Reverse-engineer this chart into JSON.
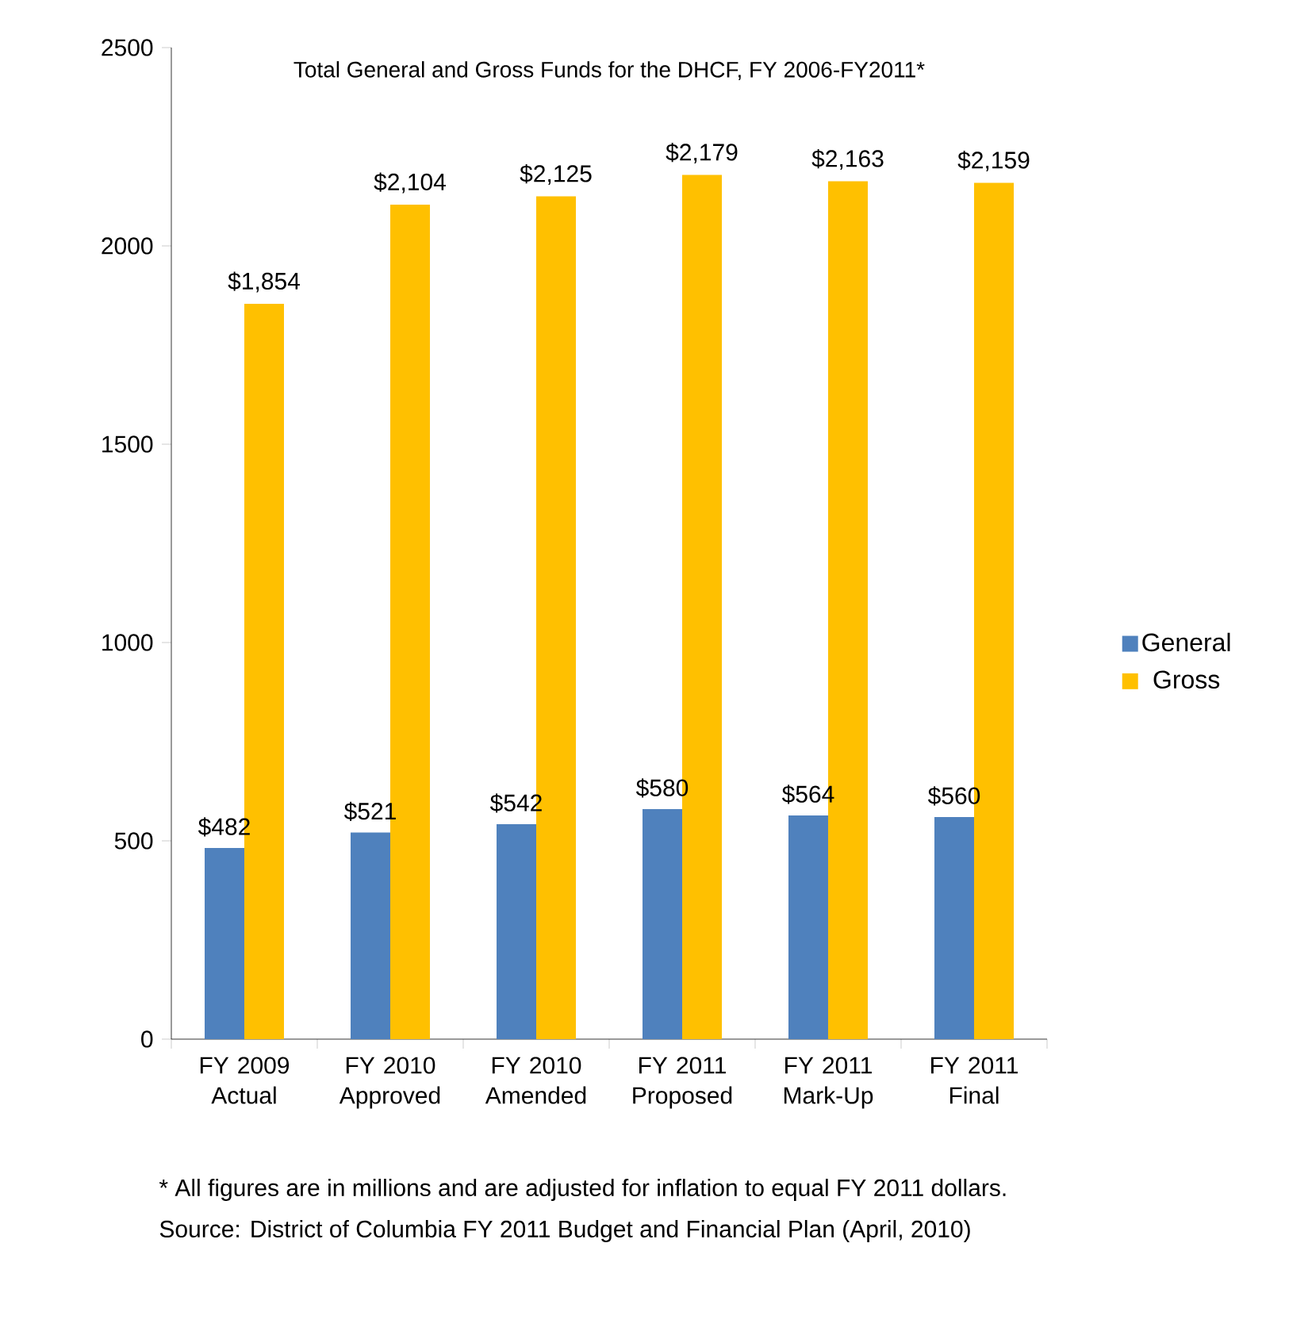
{
  "chart_data": {
    "type": "bar",
    "title": "Total General and Gross Funds for the DHCF, FY 2006-FY2011*",
    "categories": [
      "FY 2009 Actual",
      "FY 2010 Approved",
      "FY 2010 Amended",
      "FY 2011 Proposed",
      "FY 2011 Mark-Up",
      "FY 2011 Final"
    ],
    "series": [
      {
        "name": "General",
        "color": "#4f81bd",
        "values": [
          482,
          521,
          542,
          580,
          564,
          560
        ],
        "value_labels": [
          "$482",
          "$521",
          "$542",
          "$580",
          "$564",
          "$560"
        ]
      },
      {
        "name": "Gross",
        "color": "#ffc000",
        "values": [
          1854,
          2104,
          2125,
          2179,
          2163,
          2159
        ],
        "value_labels": [
          "$1,854",
          "$2,104",
          "$2,125",
          "$2,179",
          "$2,163",
          "$2,159"
        ]
      }
    ],
    "ylim": [
      0,
      2500
    ],
    "yticks": [
      0,
      500,
      1000,
      1500,
      2000,
      2500
    ],
    "grid": false,
    "legend": "right",
    "annotations": [
      "* All figures are in millions and are adjusted for inflation to equal FY 2011 dollars.",
      "Source: District of Columbia FY 2011 Budget and Financial Plan (April, 2010)"
    ]
  }
}
